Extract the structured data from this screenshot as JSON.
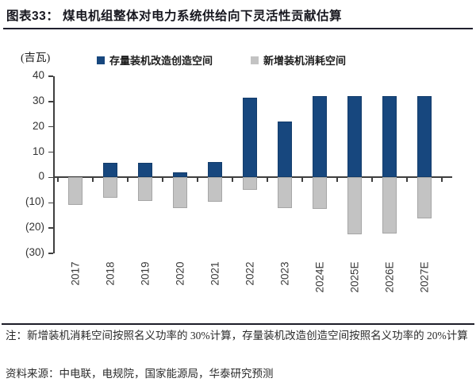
{
  "header": {
    "title": "图表33：  煤电机组整体对电力系统供给向下灵活性贡献估算"
  },
  "unit_label": "(吉瓦)",
  "legend": [
    {
      "label": "存量装机改造创造空间",
      "color": "#17477e"
    },
    {
      "label": "新增装机消耗空间",
      "color": "#c3c3c3"
    }
  ],
  "chart_data": {
    "type": "bar",
    "title": "煤电机组整体对电力系统供给向下灵活性贡献估算",
    "ylabel": "(吉瓦)",
    "categories": [
      "2017",
      "2018",
      "2019",
      "2020",
      "2021",
      "2022",
      "2023",
      "2024E",
      "2025E",
      "2026E",
      "2027E"
    ],
    "series": [
      {
        "name": "存量装机改造创造空间",
        "color": "#17477e",
        "values": [
          0,
          5.7,
          5.8,
          2.0,
          6.2,
          31.5,
          22.2,
          32,
          32,
          32,
          32
        ]
      },
      {
        "name": "新增装机消耗空间",
        "color": "#c3c3c3",
        "values": [
          -11,
          -8,
          -9.2,
          -12,
          -9.5,
          -5,
          -12.1,
          -12.5,
          -22.6,
          -22.3,
          -16.2
        ]
      }
    ],
    "ylim": [
      -30,
      40
    ],
    "ytick_step": 10,
    "ytick_labels": [
      "40",
      "30",
      "20",
      "10",
      "0",
      "(10)",
      "(20)",
      "(30)"
    ],
    "legend_position": "top",
    "grid": false
  },
  "footer": {
    "note": "注：新增装机消耗空间按照名义功率的 30%计算，存量装机改造创造空间按照名义功率的 20%计算",
    "source": "资料来源：中电联，电规院，国家能源局，华泰研究预测"
  }
}
